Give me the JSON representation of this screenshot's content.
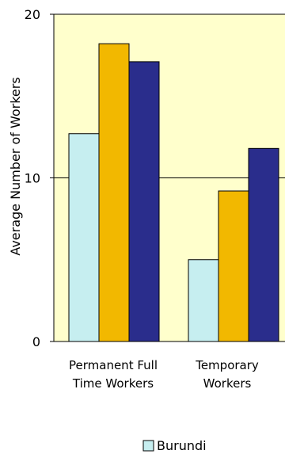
{
  "chart_data": {
    "type": "bar",
    "ylabel": "Average Number of Workers",
    "ylim": [
      0,
      20
    ],
    "yticks": [
      "0",
      "10",
      "20"
    ],
    "categories": [
      [
        "Permanent Full",
        "Time Workers"
      ],
      [
        "Temporary",
        "Workers"
      ]
    ],
    "series": [
      {
        "name": "Burundi",
        "values": [
          12.7,
          5.0
        ],
        "color": "#c6eef0"
      },
      {
        "values": [
          18.2,
          9.2
        ],
        "color": "#f2b800"
      },
      {
        "values": [
          17.1,
          11.8
        ],
        "color": "#2a2d8c"
      }
    ],
    "grid": true,
    "plot_background": "#ffffcc",
    "legend_position": "bottom"
  }
}
